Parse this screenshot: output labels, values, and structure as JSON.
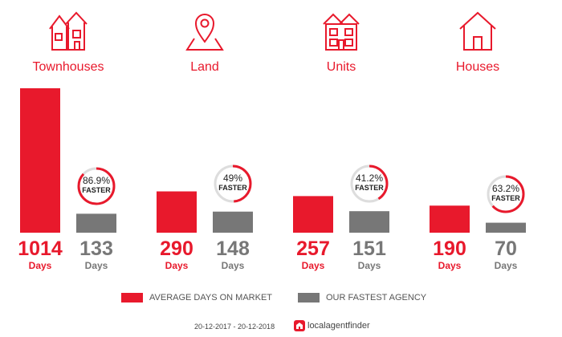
{
  "chart_data": {
    "type": "bar",
    "categories": [
      "Townhouses",
      "Land",
      "Units",
      "Houses"
    ],
    "series": [
      {
        "name": "AVERAGE DAYS ON MARKET",
        "values": [
          1014,
          290,
          257,
          190
        ]
      },
      {
        "name": "OUR FASTEST AGENCY",
        "values": [
          133,
          148,
          151,
          70
        ]
      }
    ],
    "value_unit": "Days",
    "faster_percent": [
      86.9,
      49,
      41.2,
      63.2
    ],
    "faster_labels": [
      "86.9%",
      "49%",
      "41.2%",
      "63.2%"
    ],
    "faster_word": "FASTER",
    "colors": {
      "red": "#e8192c",
      "grey": "#777777",
      "badge_track": "#dddddd"
    },
    "icons": [
      "townhouses-icon",
      "land-map-pin-icon",
      "units-building-icon",
      "house-icon"
    ]
  },
  "legend": {
    "avg_label": "AVERAGE DAYS ON MARKET",
    "fast_label": "OUR FASTEST AGENCY"
  },
  "footer": {
    "date_range": "20-12-2017 - 20-12-2018",
    "brand_name": "localagentfinder"
  }
}
